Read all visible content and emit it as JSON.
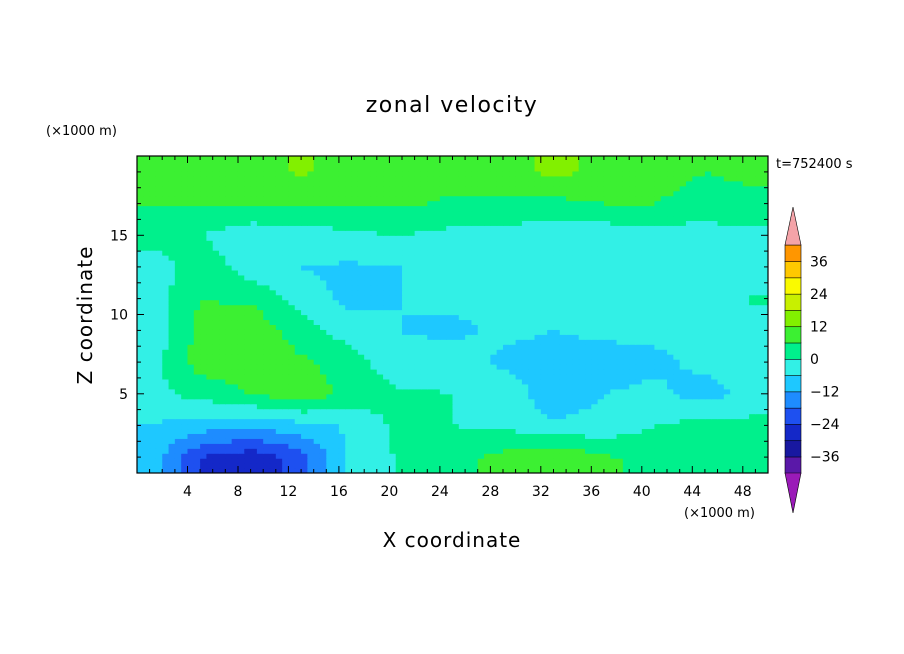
{
  "chart_data": {
    "type": "heatmap",
    "title": "zonal velocity",
    "xlabel": "X coordinate",
    "ylabel": "Z coordinate",
    "x_unit": "(×1000 m)",
    "y_unit": "(×1000 m)",
    "time_label": "t=752400 s",
    "xlim": [
      0,
      50
    ],
    "ylim": [
      0,
      20
    ],
    "x_ticks": [
      4,
      8,
      12,
      16,
      20,
      24,
      28,
      32,
      36,
      40,
      44,
      48
    ],
    "y_ticks": [
      5,
      10,
      15
    ],
    "colorbar": {
      "levels_min": -42,
      "levels_max": 42,
      "step": 6,
      "tick_values": [
        -36,
        -24,
        -12,
        0,
        12,
        24,
        36
      ],
      "tick_labels": [
        "−36",
        "−24",
        "−12",
        "0",
        "12",
        "24",
        "36"
      ],
      "colors": [
        "#9a1ab8",
        "#5a18a8",
        "#1818a0",
        "#1428c8",
        "#1e50f0",
        "#1e8cff",
        "#1ec8ff",
        "#32f0e6",
        "#00f08c",
        "#3cf032",
        "#82f000",
        "#c8f000",
        "#fafa00",
        "#ffc800",
        "#ff9600",
        "#ff6e00",
        "#ff3c00",
        "#ff1000",
        "#f4a3a8"
      ],
      "extend": "both"
    },
    "field": {
      "description_units": "zonal velocity",
      "x_centers": [
        1,
        5,
        9,
        13,
        17,
        21,
        25,
        29,
        33,
        37,
        41,
        45,
        49
      ],
      "z_centers": [
        19,
        17,
        15,
        13,
        11,
        9,
        7,
        5,
        3,
        1
      ],
      "values": [
        [
          8,
          12,
          9,
          13,
          9,
          9,
          9,
          8,
          14,
          10,
          8,
          6,
          7
        ],
        [
          6,
          6,
          6,
          6,
          6,
          7,
          5,
          5,
          4,
          6,
          6,
          4,
          5
        ],
        [
          3,
          0,
          -4,
          -3,
          -1,
          0,
          -2,
          -3,
          -3,
          -4,
          -3,
          -3,
          -2
        ],
        [
          -4,
          4,
          -3,
          -6,
          -7,
          -6,
          -3,
          0,
          -4,
          -5,
          -5,
          -4,
          -4
        ],
        [
          -4,
          6,
          5,
          -3,
          -8,
          -6,
          -5,
          -5,
          -5,
          -4,
          -5,
          -4,
          1
        ],
        [
          -5,
          8,
          11,
          3,
          -3,
          -6,
          -7,
          -5,
          -6,
          -5,
          -5,
          -4,
          -3
        ],
        [
          -3,
          9,
          10,
          7,
          3,
          -5,
          -3,
          -7,
          -8,
          -8,
          -7,
          -5,
          -4
        ],
        [
          -2,
          2,
          6,
          10,
          4,
          1,
          0,
          -2,
          -10,
          -6,
          -5,
          -8,
          -4
        ],
        [
          -6,
          -9,
          -11,
          -8,
          -5,
          2,
          0,
          -1,
          -5,
          -4,
          0,
          2,
          2
        ],
        [
          -8,
          -24,
          -28,
          -21,
          -5,
          1,
          4,
          8,
          12,
          7,
          4,
          2,
          2
        ]
      ]
    }
  }
}
